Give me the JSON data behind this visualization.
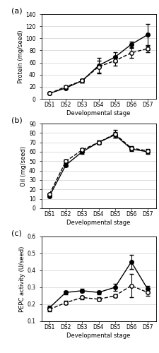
{
  "stages": [
    "DS1",
    "DS2",
    "DS3",
    "DS4",
    "DS5",
    "DS6",
    "DS7"
  ],
  "panel_a": {
    "title": "(a)",
    "ylabel": "Protein (mg/seed)",
    "xlabel": "Developmental stage",
    "ylim": [
      0,
      140
    ],
    "yticks": [
      0,
      20,
      40,
      60,
      80,
      100,
      120,
      140
    ],
    "enrei_mean": [
      9,
      18,
      30,
      55,
      69,
      90,
      106
    ],
    "enrei_se": [
      1,
      2,
      3,
      13,
      8,
      5,
      18
    ],
    "tamahomare_mean": [
      9,
      20,
      30,
      53,
      63,
      76,
      83
    ],
    "tamahomare_se": [
      1,
      2,
      3,
      10,
      8,
      8,
      6
    ]
  },
  "panel_b": {
    "title": "(b)",
    "ylabel": "Oil (mg/seed)",
    "xlabel": "Developmental stage",
    "ylim": [
      0,
      90
    ],
    "yticks": [
      0,
      10,
      20,
      30,
      40,
      50,
      60,
      70,
      80,
      90
    ],
    "enrei_mean": [
      13,
      46,
      60,
      70,
      78,
      63,
      60
    ],
    "enrei_se": [
      1,
      2,
      2,
      2,
      3,
      2,
      2
    ],
    "tamahomare_mean": [
      15,
      50,
      62,
      70,
      79,
      64,
      61
    ],
    "tamahomare_se": [
      1,
      2,
      2,
      2,
      4,
      2,
      2
    ]
  },
  "panel_c": {
    "title": "(c)",
    "ylabel": "PEPC activity (U/seed)",
    "xlabel": "Developmental stage",
    "ylim": [
      0.1,
      0.6
    ],
    "yticks": [
      0.1,
      0.2,
      0.3,
      0.4,
      0.5,
      0.6
    ],
    "enrei_mean": [
      0.18,
      0.27,
      0.28,
      0.27,
      0.3,
      0.45,
      0.29
    ],
    "enrei_se": [
      0.01,
      0.01,
      0.01,
      0.01,
      0.02,
      0.04,
      0.02
    ],
    "tamahomare_mean": [
      0.17,
      0.21,
      0.24,
      0.23,
      0.25,
      0.31,
      0.27
    ],
    "tamahomare_se": [
      0.01,
      0.01,
      0.01,
      0.01,
      0.01,
      0.07,
      0.02
    ]
  },
  "enrei_style": {
    "color": "black",
    "marker": "o",
    "markerfacecolor": "black",
    "linestyle": "-"
  },
  "tamahomare_style": {
    "color": "black",
    "marker": "o",
    "markerfacecolor": "white",
    "linestyle": "--"
  },
  "markersize": 4,
  "linewidth": 1.0,
  "capsize": 2,
  "elinewidth": 0.8,
  "grid_color": "#d0d0d0",
  "grid_linewidth": 0.5,
  "tick_fontsize": 5.5,
  "label_fontsize": 6.0,
  "panel_label_fontsize": 8
}
